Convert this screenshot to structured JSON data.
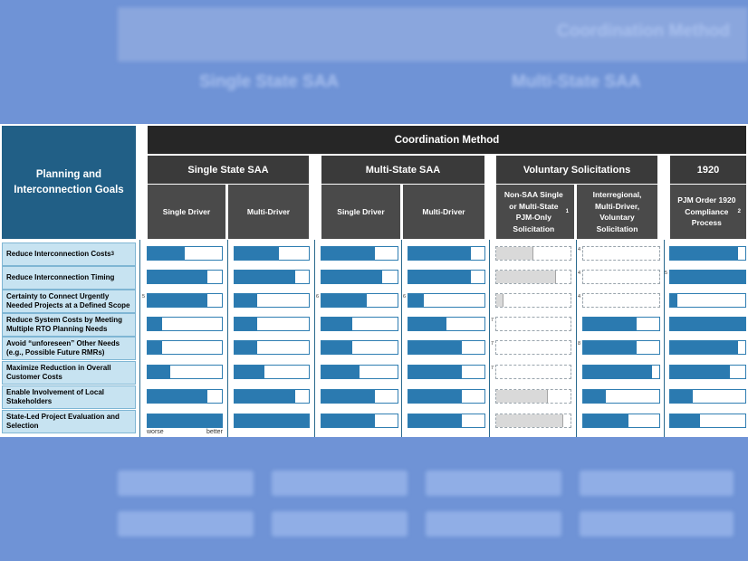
{
  "title": "Planning and Interconnection Goals",
  "header_coord": "Coordination Method",
  "groups": [
    "Single State SAA",
    "Multi-State SAA",
    "Voluntary Solicitations",
    "1920"
  ],
  "subheaders": [
    "Single Driver",
    "Multi-Driver",
    "Single Driver",
    "Multi-Driver",
    "Non-SAA Single or Multi-State PJM-Only Solicitation",
    "Interregional, Multi-Driver, Voluntary Solicitation",
    "PJM Order 1920 Compliance Process"
  ],
  "sub_sup": {
    "s4": "1",
    "s6": "2"
  },
  "axis_labels": {
    "worse": "worse",
    "better": "better"
  },
  "background_text": {
    "coord": "Coordination Method",
    "single": "Single State SAA",
    "multi": "Multi-State SAA"
  },
  "goals": [
    {
      "label": "Reduce Interconnection Costs",
      "sup": "3"
    },
    {
      "label": "Reduce Interconnection Timing",
      "sup": ""
    },
    {
      "label": "Certainty to Connect Urgently Needed Projects at a Defined Scope",
      "sup": ""
    },
    {
      "label": "Reduce System Costs by Meeting Multiple RTO Planning Needs",
      "sup": ""
    },
    {
      "label": "Avoid “unforeseen” Other Needs (e.g., Possible Future RMRs)",
      "sup": ""
    },
    {
      "label": "Maximize Reduction in Overall Customer Costs",
      "sup": ""
    },
    {
      "label": "Enable Involvement of Local Stakeholders",
      "sup": ""
    },
    {
      "label": "State-Led Project Evaluation and Selection",
      "sup": ""
    }
  ],
  "chart_data": {
    "type": "table",
    "scale": "worse to better (fraction of full bar)",
    "columns": [
      "Single State SAA - Single Driver",
      "Single State SAA - Multi-Driver",
      "Multi-State SAA - Single Driver",
      "Multi-State SAA - Multi-Driver",
      "Non-SAA Single or Multi-State PJM-Only Solicitation",
      "Interregional, Multi-Driver, Voluntary Solicitation",
      "PJM Order 1920 Compliance Process"
    ],
    "rows": [
      [
        0.5,
        0.6,
        0.7,
        0.82,
        0.5,
        0.0,
        0.9
      ],
      [
        0.8,
        0.82,
        0.8,
        0.82,
        0.8,
        0.0,
        1.0
      ],
      [
        0.8,
        0.3,
        0.6,
        0.2,
        0.1,
        0.0,
        0.1
      ],
      [
        0.2,
        0.3,
        0.4,
        0.5,
        0.0,
        0.7,
        1.0
      ],
      [
        0.2,
        0.3,
        0.4,
        0.7,
        0.0,
        0.7,
        0.9
      ],
      [
        0.3,
        0.4,
        0.5,
        0.7,
        0.0,
        0.9,
        0.8
      ],
      [
        0.8,
        0.82,
        0.7,
        0.7,
        0.7,
        0.3,
        0.3
      ],
      [
        1.0,
        1.0,
        0.7,
        0.7,
        0.9,
        0.6,
        0.4
      ]
    ],
    "styles": [
      [
        "b",
        "b",
        "b",
        "b",
        "g",
        "d",
        "b"
      ],
      [
        "b",
        "b",
        "b",
        "b",
        "g",
        "d",
        "b"
      ],
      [
        "b",
        "b",
        "b",
        "b",
        "g",
        "d",
        "b"
      ],
      [
        "b",
        "b",
        "b",
        "b",
        "d",
        "b",
        "b"
      ],
      [
        "b",
        "b",
        "b",
        "b",
        "d",
        "b",
        "b"
      ],
      [
        "b",
        "b",
        "b",
        "b",
        "d",
        "b",
        "b"
      ],
      [
        "b",
        "b",
        "b",
        "b",
        "g",
        "b",
        "b"
      ],
      [
        "b",
        "b",
        "b",
        "b",
        "g",
        "b",
        "b"
      ]
    ],
    "footnotes": [
      {
        "row": 2,
        "col": 0,
        "text": "5"
      },
      {
        "row": 2,
        "col": 2,
        "text": "6"
      },
      {
        "row": 2,
        "col": 3,
        "text": "6"
      },
      {
        "row": 0,
        "col": 5,
        "text": "4"
      },
      {
        "row": 1,
        "col": 5,
        "text": "4"
      },
      {
        "row": 2,
        "col": 5,
        "text": "4"
      },
      {
        "row": 1,
        "col": 6,
        "text": "5"
      },
      {
        "row": 3,
        "col": 4,
        "text": "7"
      },
      {
        "row": 4,
        "col": 4,
        "text": "7"
      },
      {
        "row": 5,
        "col": 4,
        "text": "7"
      },
      {
        "row": 4,
        "col": 5,
        "text": "8"
      }
    ],
    "colors": {
      "bar": "#2b7ab0",
      "neutral": "#d9d9d9",
      "header": "#262626",
      "goal_bg": "#c7e3f1",
      "title_bg": "#215f86"
    }
  }
}
